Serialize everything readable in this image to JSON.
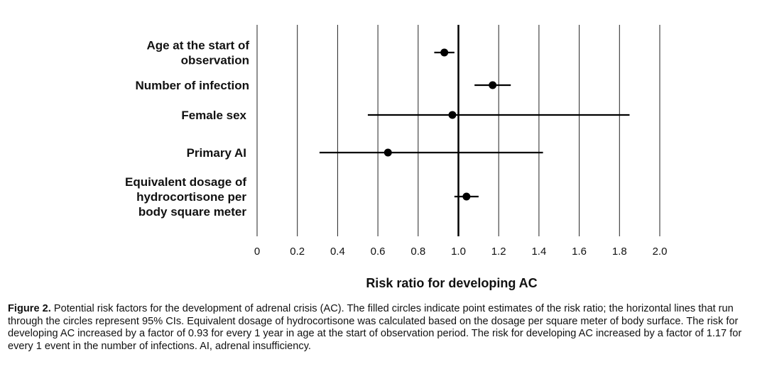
{
  "chart_data": {
    "type": "forest",
    "categories": [
      [
        "Age at the start of",
        "observation"
      ],
      [
        "Number of infection"
      ],
      [
        "Female sex"
      ],
      [
        "Primary AI"
      ],
      [
        "Equivalent dosage of",
        "hydrocortisone per",
        "body square meter"
      ]
    ],
    "points": [
      {
        "estimate": 0.93,
        "lower": 0.88,
        "upper": 0.98
      },
      {
        "estimate": 1.17,
        "lower": 1.08,
        "upper": 1.26
      },
      {
        "estimate": 0.97,
        "lower": 0.55,
        "upper": 1.85
      },
      {
        "estimate": 0.65,
        "lower": 0.31,
        "upper": 1.42
      },
      {
        "estimate": 1.04,
        "lower": 0.98,
        "upper": 1.1
      }
    ],
    "xticks": [
      0,
      0.2,
      0.4,
      0.6,
      0.8,
      1.0,
      1.2,
      1.4,
      1.6,
      1.8,
      2.0
    ],
    "xtick_labels": [
      "0",
      "0.2",
      "0.4",
      "0.6",
      "0.8",
      "1.0",
      "1.2",
      "1.4",
      "1.6",
      "1.8",
      "2.0"
    ],
    "xlim": [
      0,
      2.0
    ],
    "reference_line": 1.0,
    "xlabel": "Risk ratio for developing AC",
    "grid": "vertical"
  },
  "caption": {
    "label": "Figure 2.",
    "text": "Potential risk factors for the development of adrenal crisis (AC). The filled circles indicate point estimates of the risk ratio; the horizontal lines that run through the circles represent 95% CIs. Equivalent dosage of hydrocortisone was calculated based on the dosage per square meter of body surface. The risk for developing AC increased by a factor of 0.93 for every 1 year in age at the start of observation period. The risk for developing AC increased by a factor of 1.17 for every 1 event in the number of infections. AI, adrenal insufficiency."
  }
}
